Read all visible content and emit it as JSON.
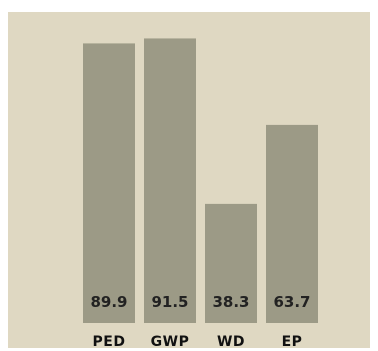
{
  "chart_data": {
    "type": "bar",
    "categories": [
      "PED",
      "GWP",
      "WD",
      "EP"
    ],
    "values": [
      89.9,
      91.5,
      38.3,
      63.7
    ],
    "value_labels": [
      "89.9",
      "91.5",
      "38.3",
      "63.7"
    ],
    "ylim": [
      0,
      100
    ],
    "grid": false,
    "legend": "none",
    "colors": {
      "background": "#dfd8c2",
      "bar": "#9c9a86",
      "text": "#222222"
    }
  }
}
